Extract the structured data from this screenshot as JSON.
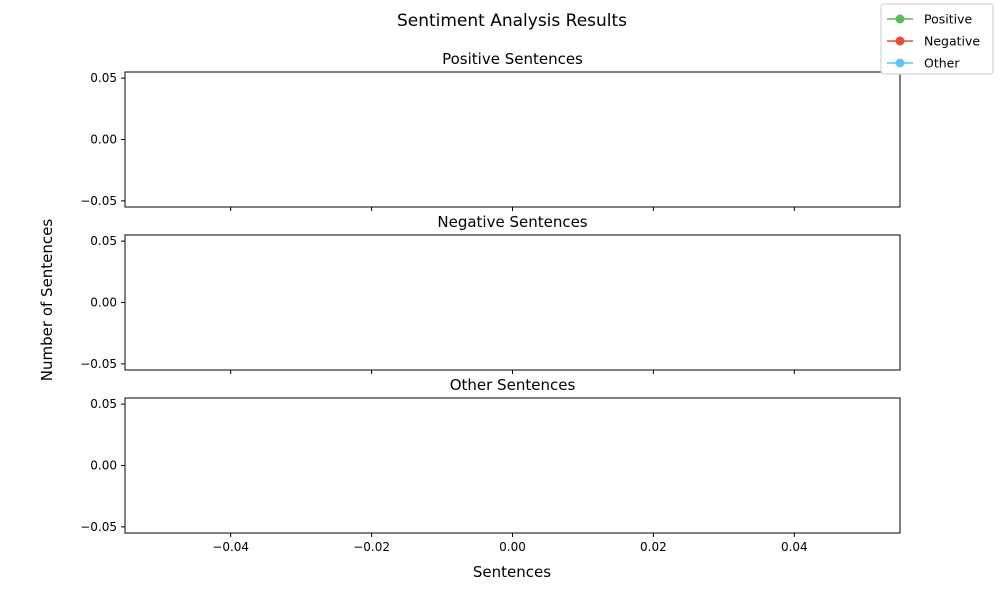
{
  "chart_data": {
    "type": "line",
    "title": "Sentiment Analysis Results",
    "xlabel": "Sentences",
    "ylabel": "Number of Sentences",
    "xlim": [
      -0.055,
      0.055
    ],
    "ylim": [
      -0.055,
      0.055
    ],
    "x_ticks": [
      -0.04,
      -0.02,
      0.0,
      0.02,
      0.04
    ],
    "x_tick_labels": [
      "−0.04",
      "−0.02",
      "0.00",
      "0.02",
      "0.04"
    ],
    "y_ticks": [
      -0.05,
      0.0,
      0.05
    ],
    "y_tick_labels": [
      "−0.05",
      "0.00",
      "0.05"
    ],
    "grid": false,
    "legend_position": "top-right",
    "panels": [
      {
        "title": "Positive Sentences",
        "series": "Positive",
        "x": [],
        "y": []
      },
      {
        "title": "Negative Sentences",
        "series": "Negative",
        "x": [],
        "y": []
      },
      {
        "title": "Other Sentences",
        "series": "Other",
        "x": [],
        "y": []
      }
    ],
    "legend": [
      {
        "name": "Positive",
        "color": "#5cb85c"
      },
      {
        "name": "Negative",
        "color": "#e74c3c"
      },
      {
        "name": "Other",
        "color": "#5bc8f5"
      }
    ]
  }
}
